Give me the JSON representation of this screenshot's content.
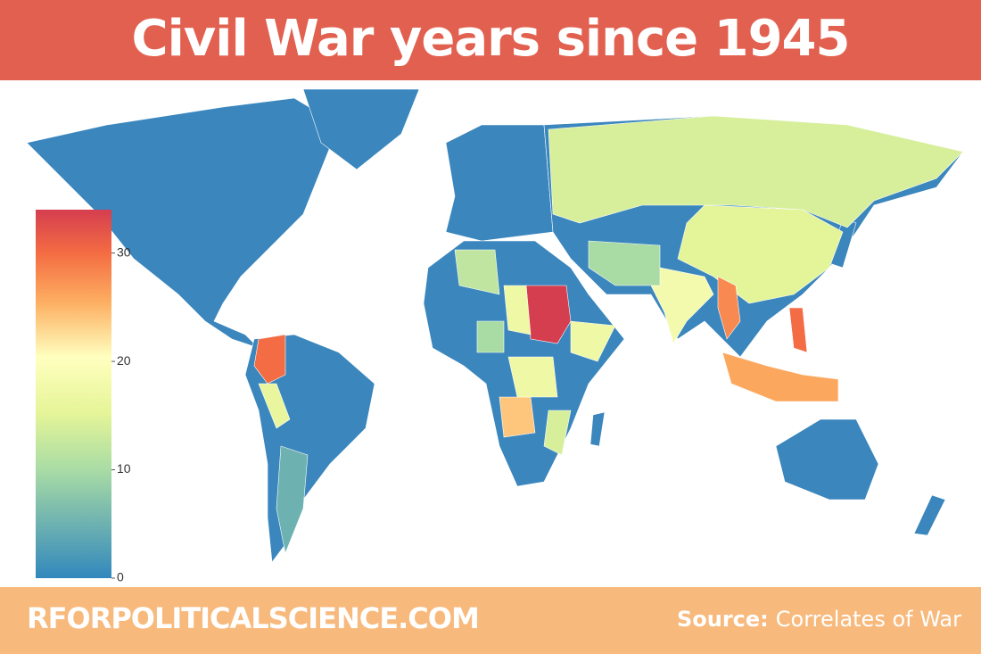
{
  "chart_data": {
    "type": "choropleth",
    "title": "Civil War years since 1945",
    "values": [
      14,
      15,
      18,
      34,
      30,
      30,
      28,
      26,
      24,
      17,
      12,
      10,
      16,
      17,
      10,
      5,
      17,
      14
    ],
    "colorscale": [
      [
        0,
        "#3288bd"
      ],
      [
        0.3,
        "#abdda4"
      ],
      [
        0.45,
        "#e6f598"
      ],
      [
        0.6,
        "#ffffbf"
      ],
      [
        0.75,
        "#fdae61"
      ],
      [
        0.88,
        "#f46d43"
      ],
      [
        1,
        "#d53e4f"
      ]
    ],
    "zlim": [
      0,
      34
    ],
    "zticks": [
      0,
      10,
      20,
      30
    ]
  },
  "footer": {
    "site": "RFORPOLITICALSCIENCE.COM",
    "source_label": "Source:",
    "source": "Correlates of War"
  }
}
